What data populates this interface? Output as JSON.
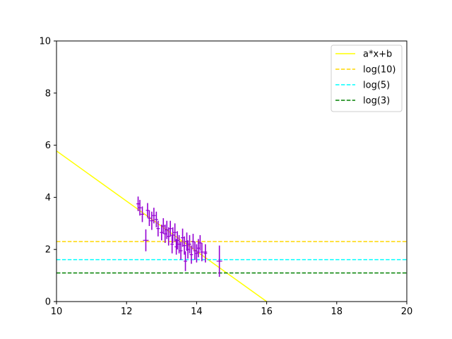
{
  "chart_data": {
    "type": "scatter",
    "xlim": [
      10,
      20
    ],
    "ylim": [
      0,
      10
    ],
    "xticks": [
      "10",
      "12",
      "14",
      "16",
      "18",
      "20"
    ],
    "yticks": [
      "0",
      "2",
      "4",
      "6",
      "8",
      "10"
    ],
    "grid": false,
    "legend_position": "top-right",
    "series": [
      {
        "name": "a*x+b",
        "kind": "line",
        "color": "#ffff00",
        "style": "solid",
        "x": [
          10,
          16
        ],
        "y": [
          5.78,
          0.0
        ]
      },
      {
        "name": "log(10)",
        "kind": "hline",
        "color": "#ffd700",
        "style": "dashed",
        "y": 2.3026
      },
      {
        "name": "log(5)",
        "kind": "hline",
        "color": "#00ffff",
        "style": "dashed",
        "y": 1.6094
      },
      {
        "name": "log(3)",
        "kind": "hline",
        "color": "#008000",
        "style": "dashed",
        "y": 1.0986
      }
    ],
    "errorbar_points": {
      "color": "#9400d3",
      "points": [
        {
          "x": 12.33,
          "y": 3.75,
          "xerr": 0.05,
          "yerr": 0.28
        },
        {
          "x": 12.38,
          "y": 3.6,
          "xerr": 0.05,
          "yerr": 0.3
        },
        {
          "x": 12.45,
          "y": 3.35,
          "xerr": 0.05,
          "yerr": 0.3
        },
        {
          "x": 12.55,
          "y": 2.35,
          "xerr": 0.08,
          "yerr": 0.42
        },
        {
          "x": 12.6,
          "y": 3.5,
          "xerr": 0.05,
          "yerr": 0.28
        },
        {
          "x": 12.65,
          "y": 3.2,
          "xerr": 0.05,
          "yerr": 0.3
        },
        {
          "x": 12.72,
          "y": 3.1,
          "xerr": 0.05,
          "yerr": 0.35
        },
        {
          "x": 12.78,
          "y": 3.3,
          "xerr": 0.05,
          "yerr": 0.3
        },
        {
          "x": 12.85,
          "y": 3.15,
          "xerr": 0.05,
          "yerr": 0.3
        },
        {
          "x": 12.9,
          "y": 2.8,
          "xerr": 0.05,
          "yerr": 0.3
        },
        {
          "x": 13.0,
          "y": 2.65,
          "xerr": 0.05,
          "yerr": 0.3
        },
        {
          "x": 13.05,
          "y": 2.9,
          "xerr": 0.05,
          "yerr": 0.3
        },
        {
          "x": 13.1,
          "y": 2.6,
          "xerr": 0.05,
          "yerr": 0.35
        },
        {
          "x": 13.15,
          "y": 2.75,
          "xerr": 0.05,
          "yerr": 0.35
        },
        {
          "x": 13.2,
          "y": 2.5,
          "xerr": 0.05,
          "yerr": 0.35
        },
        {
          "x": 13.25,
          "y": 2.8,
          "xerr": 0.05,
          "yerr": 0.3
        },
        {
          "x": 13.3,
          "y": 2.2,
          "xerr": 0.05,
          "yerr": 0.35
        },
        {
          "x": 13.32,
          "y": 2.55,
          "xerr": 0.05,
          "yerr": 0.3
        },
        {
          "x": 13.38,
          "y": 2.65,
          "xerr": 0.05,
          "yerr": 0.35
        },
        {
          "x": 13.42,
          "y": 2.1,
          "xerr": 0.05,
          "yerr": 0.3
        },
        {
          "x": 13.45,
          "y": 2.35,
          "xerr": 0.05,
          "yerr": 0.35
        },
        {
          "x": 13.5,
          "y": 2.2,
          "xerr": 0.05,
          "yerr": 0.35
        },
        {
          "x": 13.55,
          "y": 1.95,
          "xerr": 0.05,
          "yerr": 0.35
        },
        {
          "x": 13.6,
          "y": 2.45,
          "xerr": 0.05,
          "yerr": 0.35
        },
        {
          "x": 13.65,
          "y": 2.15,
          "xerr": 0.05,
          "yerr": 0.35
        },
        {
          "x": 13.68,
          "y": 1.55,
          "xerr": 0.05,
          "yerr": 0.38
        },
        {
          "x": 13.72,
          "y": 2.3,
          "xerr": 0.05,
          "yerr": 0.35
        },
        {
          "x": 13.75,
          "y": 2.0,
          "xerr": 0.05,
          "yerr": 0.35
        },
        {
          "x": 13.8,
          "y": 2.2,
          "xerr": 0.05,
          "yerr": 0.35
        },
        {
          "x": 13.85,
          "y": 1.8,
          "xerr": 0.05,
          "yerr": 0.35
        },
        {
          "x": 13.9,
          "y": 2.3,
          "xerr": 0.05,
          "yerr": 0.3
        },
        {
          "x": 13.95,
          "y": 1.95,
          "xerr": 0.05,
          "yerr": 0.35
        },
        {
          "x": 14.0,
          "y": 1.85,
          "xerr": 0.05,
          "yerr": 0.35
        },
        {
          "x": 14.05,
          "y": 2.05,
          "xerr": 0.05,
          "yerr": 0.35
        },
        {
          "x": 14.1,
          "y": 2.25,
          "xerr": 0.05,
          "yerr": 0.3
        },
        {
          "x": 14.15,
          "y": 1.9,
          "xerr": 0.15,
          "yerr": 0.35
        },
        {
          "x": 14.25,
          "y": 1.85,
          "xerr": 0.05,
          "yerr": 0.35
        },
        {
          "x": 14.65,
          "y": 1.55,
          "xerr": 0.08,
          "yerr": 0.6
        }
      ]
    }
  }
}
